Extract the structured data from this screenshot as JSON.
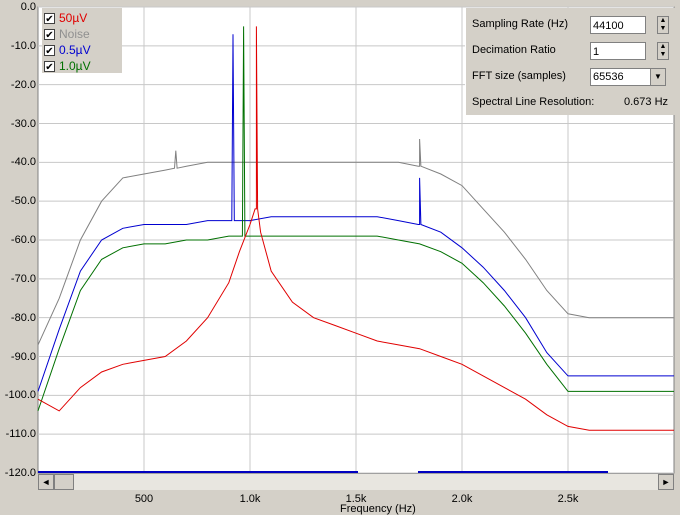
{
  "chart_data": {
    "type": "line",
    "xlabel": "Frequency (Hz)",
    "ylabel": "",
    "ylim": [
      -120,
      0
    ],
    "xlim": [
      0,
      3000
    ],
    "yticks": [
      "0.0",
      "-10.0",
      "-20.0",
      "-30.0",
      "-40.0",
      "-50.0",
      "-60.0",
      "-70.0",
      "-80.0",
      "-90.0",
      "-100.0",
      "-110.0",
      "-120.0"
    ],
    "xticks": [
      {
        "v": 500,
        "label": "500"
      },
      {
        "v": 1000,
        "label": "1.0k"
      },
      {
        "v": 1500,
        "label": "1.5k"
      },
      {
        "v": 2000,
        "label": "2.0k"
      },
      {
        "v": 2500,
        "label": "2.5k"
      }
    ],
    "grid": true,
    "series": [
      {
        "name": "Noise",
        "color": "#808080",
        "x": [
          0,
          100,
          200,
          300,
          400,
          500,
          600,
          700,
          800,
          900,
          1000,
          1100,
          1200,
          1300,
          1400,
          1500,
          1600,
          1700,
          1800,
          1900,
          2000,
          2100,
          2200,
          2300,
          2400,
          2500,
          2600,
          2700,
          2800,
          2900,
          3000
        ],
        "y": [
          -87,
          -75,
          -60,
          -50,
          -44,
          -43,
          -42,
          -41,
          -40,
          -40,
          -40,
          -40,
          -40,
          -40,
          -40,
          -40,
          -40,
          -40,
          -41,
          -43,
          -46,
          -52,
          -58,
          -65,
          -73,
          -79,
          -80,
          -80,
          -80,
          -80,
          -80
        ],
        "peaks": [
          {
            "x": 1800,
            "y": -34
          },
          {
            "x": 650,
            "y": -37
          }
        ]
      },
      {
        "name": "0.5µV",
        "color": "#0000d0",
        "x": [
          0,
          100,
          200,
          300,
          400,
          500,
          600,
          700,
          800,
          900,
          1000,
          1100,
          1200,
          1300,
          1400,
          1500,
          1600,
          1700,
          1800,
          1900,
          2000,
          2100,
          2200,
          2300,
          2400,
          2500,
          2600,
          2700,
          2800,
          2900,
          3000
        ],
        "y": [
          -99,
          -83,
          -68,
          -60,
          -57,
          -56,
          -56,
          -56,
          -55,
          -55,
          -55,
          -54,
          -54,
          -54,
          -54,
          -54,
          -54,
          -55,
          -56,
          -58,
          -62,
          -67,
          -73,
          -80,
          -89,
          -95,
          -95,
          -95,
          -95,
          -95,
          -95
        ],
        "peaks": [
          {
            "x": 920,
            "y": -7
          },
          {
            "x": 1800,
            "y": -44
          }
        ]
      },
      {
        "name": "1.0µV",
        "color": "#007000",
        "x": [
          0,
          100,
          200,
          300,
          400,
          500,
          600,
          700,
          800,
          900,
          1000,
          1100,
          1200,
          1300,
          1400,
          1500,
          1600,
          1700,
          1800,
          1900,
          2000,
          2100,
          2200,
          2300,
          2400,
          2500,
          2600,
          2700,
          2800,
          2900,
          3000
        ],
        "y": [
          -104,
          -88,
          -73,
          -65,
          -62,
          -61,
          -61,
          -60,
          -60,
          -59,
          -59,
          -59,
          -59,
          -59,
          -59,
          -59,
          -59,
          -60,
          -61,
          -63,
          -66,
          -71,
          -77,
          -84,
          -92,
          -99,
          -99,
          -99,
          -99,
          -99,
          -99
        ],
        "peaks": [
          {
            "x": 970,
            "y": -5
          }
        ]
      },
      {
        "name": "50µV",
        "color": "#e00000",
        "x": [
          0,
          100,
          200,
          300,
          400,
          500,
          600,
          700,
          800,
          900,
          950,
          1000,
          1030,
          1050,
          1100,
          1200,
          1300,
          1400,
          1500,
          1600,
          1700,
          1800,
          1900,
          2000,
          2100,
          2200,
          2300,
          2400,
          2500,
          2600,
          2700,
          2800,
          2900,
          3000
        ],
        "y": [
          -101,
          -104,
          -98,
          -94,
          -92,
          -91,
          -90,
          -86,
          -80,
          -71,
          -63,
          -56,
          -52,
          -58,
          -68,
          -76,
          -80,
          -82,
          -84,
          -86,
          -87,
          -88,
          -90,
          -92,
          -95,
          -98,
          -101,
          -105,
          -108,
          -109,
          -109,
          -109,
          -109,
          -109
        ],
        "peaks": [
          {
            "x": 1030,
            "y": -5
          }
        ]
      }
    ]
  },
  "legend": {
    "items": [
      {
        "label": "50µV",
        "color": "#e00000",
        "checked": "✔"
      },
      {
        "label": "Noise",
        "color": "#808080",
        "checked": "✔"
      },
      {
        "label": "0.5µV",
        "color": "#0000d0",
        "checked": "✔"
      },
      {
        "label": "1.0µV",
        "color": "#007000",
        "checked": "✔"
      }
    ]
  },
  "settings": {
    "sampling_rate_label": "Sampling Rate (Hz)",
    "sampling_rate_value": "44100",
    "decimation_label": "Decimation Ratio",
    "decimation_value": "1",
    "fft_label": "FFT size (samples)",
    "fft_value": "65536",
    "resolution_label": "Spectral Line Resolution:",
    "resolution_value": "0.673 Hz"
  },
  "scrollbar": {
    "left_arrow": "◄",
    "right_arrow": "►"
  }
}
